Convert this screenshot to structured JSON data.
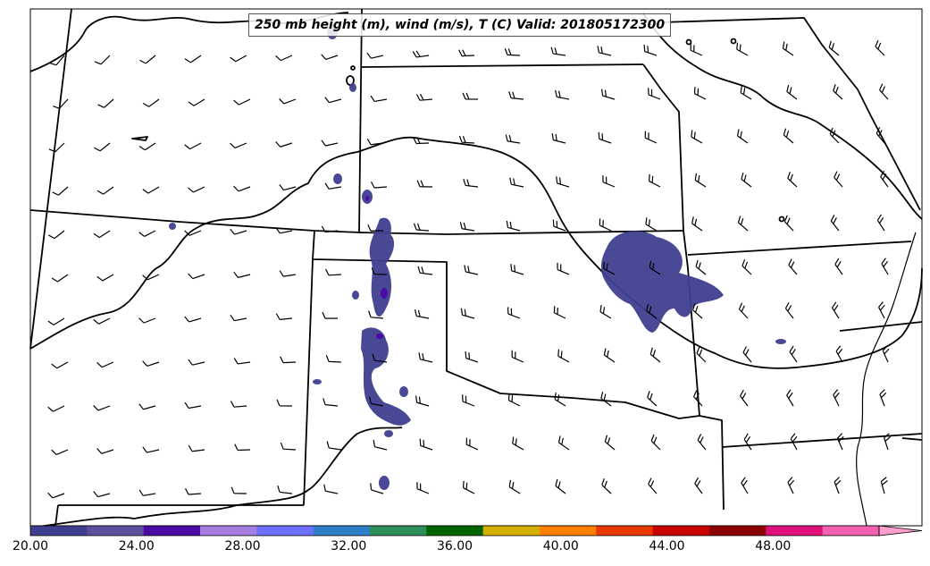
{
  "title": "250 mb height (m), wind (m/s), T (C) Valid: 201805172300",
  "colorbar": {
    "ticks": [
      "20.00",
      "24.00",
      "28.00",
      "32.00",
      "36.00",
      "40.00",
      "44.00",
      "48.00"
    ],
    "min": 20,
    "max": 52,
    "colors": [
      "#3f3f8f",
      "#5e4f9c",
      "#4b0aa5",
      "#a67de0",
      "#6f6fff",
      "#2e7fc8",
      "#2e8f5a",
      "#006400",
      "#d6b000",
      "#ff7f00",
      "#e83a00",
      "#c80000",
      "#8b0000",
      "#e0107a",
      "#f260b0",
      "#ff9fd0"
    ]
  },
  "map": {
    "region": "south-central United States",
    "shaded_field": "temperature",
    "wind_barbs": true
  }
}
